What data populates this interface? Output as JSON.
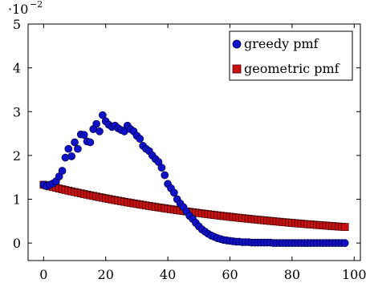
{
  "chart_data": {
    "type": "scatter",
    "axis_scale_label": {
      "base": "·10",
      "exponent": "−2"
    },
    "xlim": [
      -5,
      102
    ],
    "ylim": [
      -0.4,
      5.0
    ],
    "x_ticks": [
      0,
      20,
      40,
      60,
      80,
      100
    ],
    "y_ticks": [
      0,
      1,
      2,
      3,
      4,
      5
    ],
    "grid": false,
    "legend_position": "top-right",
    "series": [
      {
        "name": "greedy pmf",
        "marker": "circle",
        "color": "#1010c8",
        "edge_color": "#000040",
        "x": [
          0,
          1,
          2,
          3,
          4,
          5,
          6,
          7,
          8,
          9,
          10,
          11,
          12,
          13,
          14,
          15,
          16,
          17,
          18,
          19,
          20,
          21,
          22,
          23,
          24,
          25,
          26,
          27,
          28,
          29,
          30,
          31,
          32,
          33,
          34,
          35,
          36,
          37,
          38,
          39,
          40,
          41,
          42,
          43,
          44,
          45,
          46,
          47,
          48,
          49,
          50,
          51,
          52,
          53,
          54,
          55,
          56,
          57,
          58,
          59,
          60,
          61,
          62,
          63,
          64,
          65,
          66,
          67,
          68,
          69,
          70,
          71,
          72,
          73,
          74,
          75,
          76,
          77,
          78,
          79,
          80,
          81,
          82,
          83,
          84,
          85,
          86,
          87,
          88,
          89,
          90,
          91,
          92,
          93,
          94,
          95,
          96,
          97
        ],
        "y": [
          1.33,
          1.3,
          1.33,
          1.36,
          1.41,
          1.52,
          1.65,
          1.95,
          2.15,
          1.98,
          2.3,
          2.15,
          2.48,
          2.47,
          2.32,
          2.3,
          2.6,
          2.72,
          2.55,
          2.92,
          2.78,
          2.7,
          2.65,
          2.68,
          2.62,
          2.58,
          2.55,
          2.68,
          2.6,
          2.55,
          2.45,
          2.38,
          2.22,
          2.15,
          2.1,
          2.0,
          1.92,
          1.85,
          1.72,
          1.55,
          1.35,
          1.25,
          1.15,
          1.0,
          0.9,
          0.82,
          0.72,
          0.62,
          0.55,
          0.46,
          0.38,
          0.31,
          0.26,
          0.21,
          0.17,
          0.14,
          0.11,
          0.09,
          0.07,
          0.06,
          0.05,
          0.04,
          0.03,
          0.03,
          0.02,
          0.02,
          0.02,
          0.01,
          0.01,
          0.01,
          0.01,
          0.01,
          0.01,
          0.01,
          0.0,
          0.0,
          0.0,
          0.0,
          0.0,
          0.0,
          0.0,
          0.0,
          0.0,
          0.0,
          0.0,
          0.0,
          0.0,
          0.0,
          0.0,
          0.0,
          0.0,
          0.0,
          0.0,
          0.0,
          0.0,
          0.0,
          0.0,
          0.0
        ]
      },
      {
        "name": "geometric pmf",
        "marker": "square",
        "color": "#c81010",
        "edge_color": "#400000",
        "x_start": 0,
        "x_end": 97,
        "y_start": 1.33,
        "decay_per_step": 0.9868
      }
    ]
  }
}
